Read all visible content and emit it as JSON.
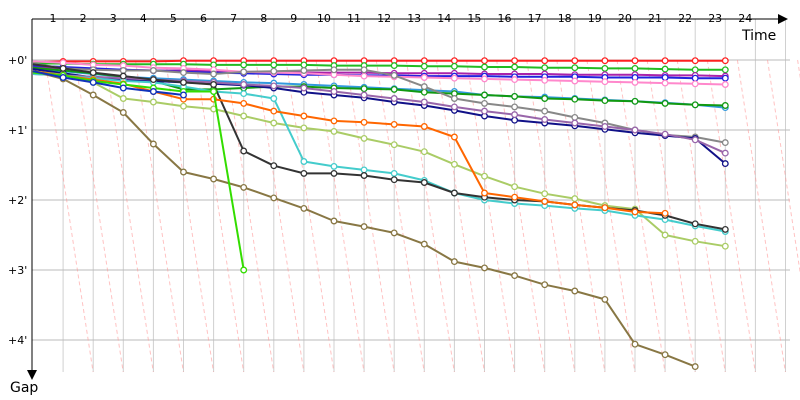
{
  "chart_data": {
    "type": "line",
    "title": "",
    "xlabel": "Time",
    "ylabel": "Gap",
    "x_ticks": [
      "1",
      "2",
      "3",
      "4",
      "5",
      "6",
      "7",
      "8",
      "9",
      "10",
      "11",
      "12",
      "13",
      "14",
      "15",
      "16",
      "17",
      "18",
      "19",
      "20",
      "21",
      "22",
      "23",
      "24"
    ],
    "y_ticks": [
      "+0'",
      "+1'",
      "+2'",
      "+3'",
      "+4'"
    ],
    "xlim": [
      0,
      25
    ],
    "ylim": [
      0,
      4.3
    ],
    "grid": true,
    "series": [
      {
        "color": "#ff2020",
        "values": [
          0.03,
          0.02,
          0.02,
          0.02,
          0.02,
          0.01,
          0.01,
          0.01,
          0.01,
          0.01,
          0.01,
          0.01,
          0.01,
          0.01,
          0.01,
          0.01,
          0.01,
          0.01,
          0.01,
          0.01,
          0.01,
          0.01,
          0.01,
          0.01
        ]
      },
      {
        "color": "#22bb22",
        "values": [
          0.05,
          0.05,
          0.06,
          0.06,
          0.06,
          0.06,
          0.07,
          0.07,
          0.07,
          0.07,
          0.08,
          0.08,
          0.08,
          0.09,
          0.09,
          0.1,
          0.1,
          0.11,
          0.11,
          0.12,
          0.12,
          0.13,
          0.14,
          0.14
        ]
      },
      {
        "color": "#aa22aa",
        "values": [
          0.1,
          0.12,
          0.13,
          0.14,
          0.15,
          0.15,
          0.16,
          0.17,
          0.17,
          0.18,
          0.18,
          0.18,
          0.19,
          0.19,
          0.19,
          0.2,
          0.2,
          0.2,
          0.21,
          0.21,
          0.21,
          0.22,
          0.22,
          0.23
        ]
      },
      {
        "color": "#2222dd",
        "values": [
          0.08,
          0.1,
          0.12,
          0.14,
          0.15,
          0.17,
          0.18,
          0.19,
          0.2,
          0.21,
          0.21,
          0.22,
          0.22,
          0.23,
          0.23,
          0.23,
          0.24,
          0.24,
          0.24,
          0.25,
          0.25,
          0.25,
          0.26,
          0.26
        ]
      },
      {
        "color": "#ff88cc",
        "values": [
          0.02,
          0.04,
          0.07,
          0.08,
          0.11,
          0.12,
          0.14,
          0.17,
          0.18,
          0.19,
          0.21,
          0.23,
          0.24,
          0.25,
          0.26,
          0.27,
          0.28,
          0.29,
          0.3,
          0.31,
          0.32,
          0.33,
          0.34,
          0.35
        ]
      },
      {
        "color": "#3399dd",
        "values": [
          0.12,
          0.16,
          0.2,
          0.24,
          0.26,
          0.28,
          0.3,
          0.32,
          0.33,
          0.35,
          0.37,
          0.39,
          0.41,
          0.43,
          0.45,
          0.5,
          0.52,
          0.53,
          0.55,
          0.57,
          0.59,
          0.61,
          0.64,
          0.68
        ]
      },
      {
        "color": "#119911",
        "values": [
          0.11,
          0.15,
          0.19,
          0.24,
          0.3,
          0.42,
          0.42,
          0.4,
          0.38,
          0.38,
          0.4,
          0.41,
          0.42,
          0.46,
          0.48,
          0.5,
          0.52,
          0.55,
          0.56,
          0.58,
          0.59,
          0.62,
          0.64,
          0.65
        ]
      },
      {
        "color": "#888888",
        "values": [
          0.05,
          0.12,
          0.14,
          0.15,
          0.15,
          0.18,
          0.2,
          0.17,
          0.16,
          0.15,
          0.14,
          0.14,
          0.22,
          0.38,
          0.55,
          0.62,
          0.67,
          0.73,
          0.82,
          0.9,
          1.0,
          1.07,
          1.1,
          1.18
        ]
      },
      {
        "color": "#111188",
        "values": [
          0.13,
          0.19,
          0.25,
          0.28,
          0.3,
          0.32,
          0.34,
          0.36,
          0.4,
          0.46,
          0.5,
          0.54,
          0.6,
          0.65,
          0.72,
          0.8,
          0.86,
          0.9,
          0.94,
          0.99,
          1.04,
          1.08,
          1.12,
          1.48
        ]
      },
      {
        "color": "#9966aa",
        "values": [
          0.2,
          0.22,
          0.24,
          0.26,
          0.28,
          0.3,
          0.32,
          0.35,
          0.37,
          0.4,
          0.45,
          0.5,
          0.55,
          0.6,
          0.67,
          0.73,
          0.78,
          0.85,
          0.9,
          0.95,
          1.0,
          1.06,
          1.14,
          1.33
        ]
      },
      {
        "color": "#aacc66",
        "values": [
          0.16,
          0.21,
          0.32,
          0.55,
          0.6,
          0.66,
          0.7,
          0.8,
          0.9,
          0.97,
          1.02,
          1.12,
          1.21,
          1.31,
          1.49,
          1.66,
          1.81,
          1.91,
          1.98,
          2.08,
          2.13,
          2.5,
          2.59,
          2.66
        ]
      },
      {
        "color": "#44cccc",
        "values": [
          0.2,
          0.22,
          0.26,
          0.3,
          0.32,
          0.38,
          0.45,
          0.48,
          0.55,
          1.45,
          1.52,
          1.57,
          1.62,
          1.72,
          1.9,
          2.0,
          2.05,
          2.08,
          2.12,
          2.15,
          2.22,
          2.28,
          2.37,
          2.45
        ]
      },
      {
        "color": "#333333",
        "values": [
          0.06,
          0.12,
          0.18,
          0.23,
          0.28,
          0.32,
          0.35,
          1.3,
          1.51,
          1.62,
          1.62,
          1.65,
          1.71,
          1.75,
          1.9,
          1.96,
          2.0,
          2.02,
          2.07,
          2.11,
          2.15,
          2.22,
          2.34,
          2.42
        ]
      },
      {
        "color": "#ff6600",
        "values": [
          0.16,
          0.22,
          0.28,
          0.34,
          0.45,
          0.56,
          0.56,
          0.62,
          0.73,
          0.8,
          0.87,
          0.89,
          0.92,
          0.95,
          1.1,
          1.9,
          1.96,
          2.02,
          2.07,
          2.11,
          2.17,
          2.19
        ]
      },
      {
        "color": "#887744",
        "values": [
          0.16,
          0.27,
          0.5,
          0.75,
          1.2,
          1.6,
          1.7,
          1.82,
          1.97,
          2.12,
          2.3,
          2.38,
          2.47,
          2.63,
          2.88,
          2.97,
          3.08,
          3.21,
          3.3,
          3.42,
          4.06,
          4.21,
          4.38
        ]
      },
      {
        "color": "#33dd00",
        "values": [
          0.18,
          0.22,
          0.3,
          0.35,
          0.4,
          0.45,
          0.45,
          3.0
        ]
      },
      {
        "color": "#1133bb",
        "values": [
          0.16,
          0.25,
          0.32,
          0.4,
          0.45,
          0.5
        ]
      }
    ]
  }
}
